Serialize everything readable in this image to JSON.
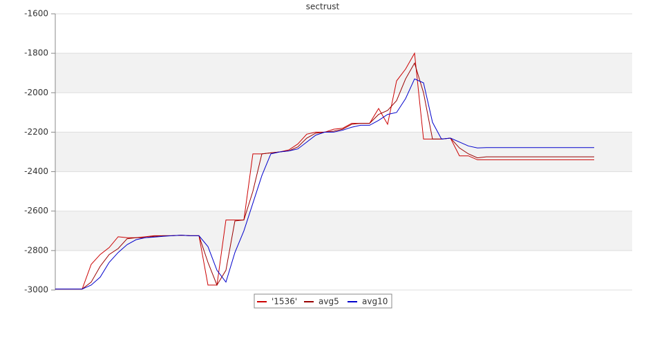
{
  "chart_data": {
    "type": "line",
    "title": "sectrust",
    "ylim": [
      -3000,
      -1600
    ],
    "yticks": [
      -3000,
      -2800,
      -2600,
      -2400,
      -2200,
      -2000,
      -1800,
      -1600
    ],
    "grid": true,
    "series": [
      {
        "name": "'1536'",
        "color": "#cc0000",
        "values": [
          -2995,
          -2995,
          -2995,
          -2995,
          -2870,
          -2820,
          -2785,
          -2730,
          -2735,
          -2735,
          -2730,
          -2725,
          -2725,
          -2725,
          -2722,
          -2725,
          -2725,
          -2975,
          -2975,
          -2645,
          -2645,
          -2645,
          -2310,
          -2310,
          -2305,
          -2300,
          -2290,
          -2260,
          -2210,
          -2200,
          -2200,
          -2185,
          -2180,
          -2155,
          -2155,
          -2155,
          -2080,
          -2160,
          -1940,
          -1880,
          -1800,
          -2235,
          -2235,
          -2235,
          -2230,
          -2320,
          -2320,
          -2340,
          -2340,
          -2340,
          -2340,
          -2340,
          -2340,
          -2340,
          -2340,
          -2340,
          -2340,
          -2340,
          -2340,
          -2340,
          -2340
        ]
      },
      {
        "name": "avg5",
        "color": "#990000",
        "values": [
          -2995,
          -2995,
          -2995,
          -2995,
          -2960,
          -2880,
          -2820,
          -2790,
          -2740,
          -2735,
          -2735,
          -2728,
          -2725,
          -2725,
          -2722,
          -2725,
          -2725,
          -2860,
          -2975,
          -2900,
          -2650,
          -2645,
          -2500,
          -2310,
          -2305,
          -2300,
          -2295,
          -2275,
          -2230,
          -2205,
          -2200,
          -2195,
          -2185,
          -2160,
          -2155,
          -2155,
          -2110,
          -2090,
          -2040,
          -1930,
          -1850,
          -2000,
          -2235,
          -2235,
          -2230,
          -2280,
          -2310,
          -2330,
          -2325,
          -2325,
          -2325,
          -2325,
          -2325,
          -2325,
          -2325,
          -2325,
          -2325,
          -2325,
          -2325,
          -2325,
          -2325
        ]
      },
      {
        "name": "avg10",
        "color": "#0000cc",
        "values": [
          -2995,
          -2995,
          -2995,
          -2995,
          -2975,
          -2935,
          -2860,
          -2810,
          -2770,
          -2745,
          -2735,
          -2732,
          -2728,
          -2725,
          -2722,
          -2725,
          -2725,
          -2780,
          -2900,
          -2960,
          -2810,
          -2700,
          -2560,
          -2420,
          -2310,
          -2300,
          -2295,
          -2285,
          -2250,
          -2215,
          -2200,
          -2200,
          -2190,
          -2175,
          -2165,
          -2165,
          -2140,
          -2110,
          -2100,
          -2030,
          -1930,
          -1950,
          -2150,
          -2235,
          -2230,
          -2250,
          -2270,
          -2280,
          -2278,
          -2278,
          -2278,
          -2278,
          -2278,
          -2278,
          -2278,
          -2278,
          -2278,
          -2278,
          -2278,
          -2278,
          -2278
        ]
      }
    ]
  }
}
